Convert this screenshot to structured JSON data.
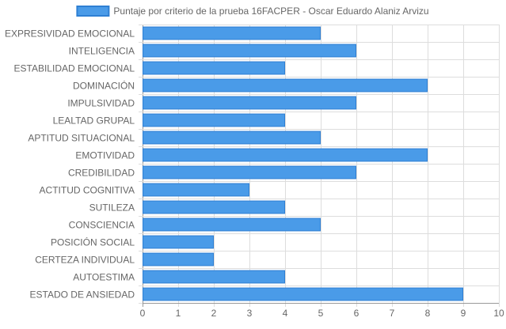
{
  "chart_data": {
    "type": "bar",
    "orientation": "horizontal",
    "categories": [
      "EXPRESIVIDAD EMOCIONAL",
      "INTELIGENCIA",
      "ESTABILIDAD EMOCIONAL",
      "DOMINACIÓN",
      "IMPULSIVIDAD",
      "LEALTAD GRUPAL",
      "APTITUD SITUACIONAL",
      "EMOTIVIDAD",
      "CREDIBILIDAD",
      "ACTITUD COGNITIVA",
      "SUTILEZA",
      "CONSCIENCIA",
      "POSICIÓN SOCIAL",
      "CERTEZA INDIVIDUAL",
      "AUTOESTIMA",
      "ESTADO DE ANSIEDAD"
    ],
    "series": [
      {
        "name": "Puntaje por criterio de la prueba 16FACPER - Oscar Eduardo Alaniz Arvizu",
        "values": [
          5,
          6,
          4,
          8,
          6,
          4,
          5,
          8,
          6,
          3,
          4,
          5,
          2,
          2,
          4,
          9
        ]
      }
    ],
    "xlim": [
      0,
      10
    ],
    "xticks": [
      0,
      1,
      2,
      3,
      4,
      5,
      6,
      7,
      8,
      9,
      10
    ],
    "grid": true,
    "legend_position": "top-center",
    "colors": {
      "bar_fill": "#4A9BE8",
      "bar_stroke": "#2E7FD3",
      "grid": "#DDDDDD",
      "grid_dark": "#999999",
      "text": "#666666",
      "legend_fill": "#4A9BE8",
      "legend_stroke": "#2E7FD3"
    }
  }
}
